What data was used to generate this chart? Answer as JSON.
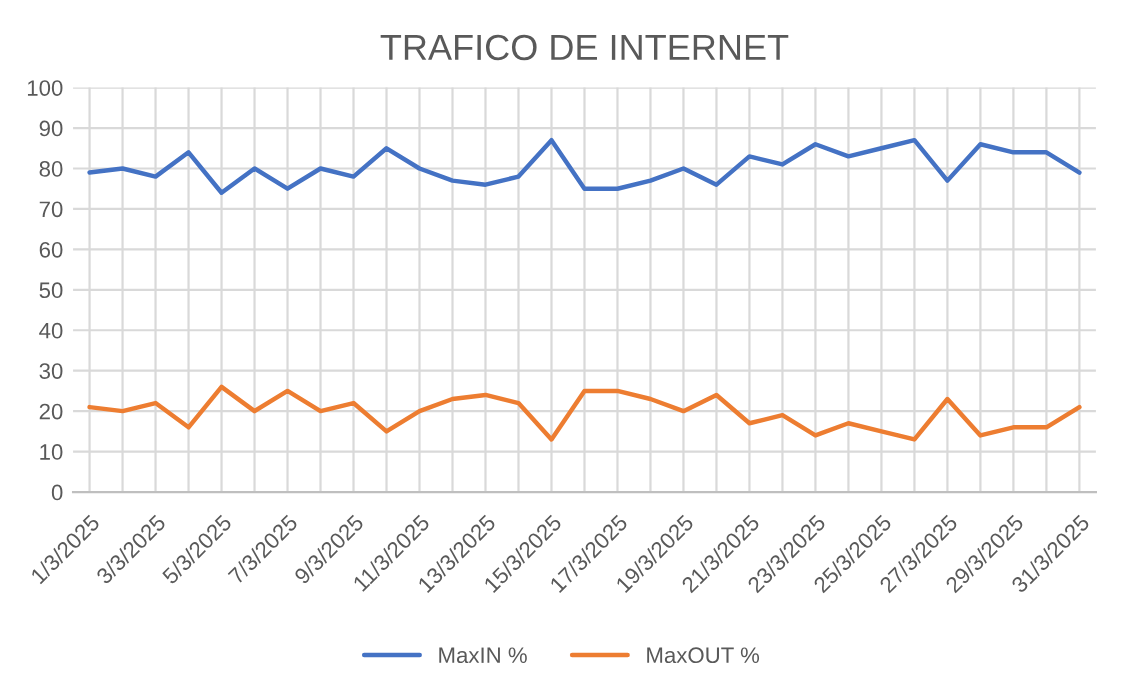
{
  "chart_data": {
    "type": "line",
    "title": "TRAFICO DE INTERNET",
    "categories": [
      "1/3/2025",
      null,
      "3/3/2025",
      null,
      "5/3/2025",
      null,
      "7/3/2025",
      null,
      "9/3/2025",
      null,
      "11/3/2025",
      null,
      "13/3/2025",
      null,
      "15/3/2025",
      null,
      "17/3/2025",
      null,
      "19/3/2025",
      null,
      "21/3/2025",
      null,
      "23/3/2025",
      null,
      "25/3/2025",
      null,
      "27/3/2025",
      null,
      "29/3/2025",
      null,
      "31/3/2025"
    ],
    "series": [
      {
        "name": "MaxIN %",
        "color": "#4472c4",
        "values": [
          79,
          80,
          78,
          84,
          74,
          80,
          75,
          80,
          78,
          85,
          80,
          77,
          76,
          78,
          87,
          75,
          75,
          77,
          80,
          76,
          83,
          81,
          86,
          83,
          85,
          87,
          77,
          86,
          84,
          84,
          79
        ]
      },
      {
        "name": "MaxOUT %",
        "color": "#ed7d31",
        "values": [
          21,
          20,
          22,
          16,
          26,
          20,
          25,
          20,
          22,
          15,
          20,
          23,
          24,
          22,
          13,
          25,
          25,
          23,
          20,
          24,
          17,
          19,
          14,
          17,
          15,
          13,
          23,
          14,
          16,
          16,
          21
        ]
      }
    ],
    "ylim": [
      0,
      100
    ],
    "yticks": [
      0,
      10,
      20,
      30,
      40,
      50,
      60,
      70,
      80,
      90,
      100
    ],
    "grid": true,
    "legend": "bottom",
    "marker": "none",
    "line_style": "solid"
  }
}
